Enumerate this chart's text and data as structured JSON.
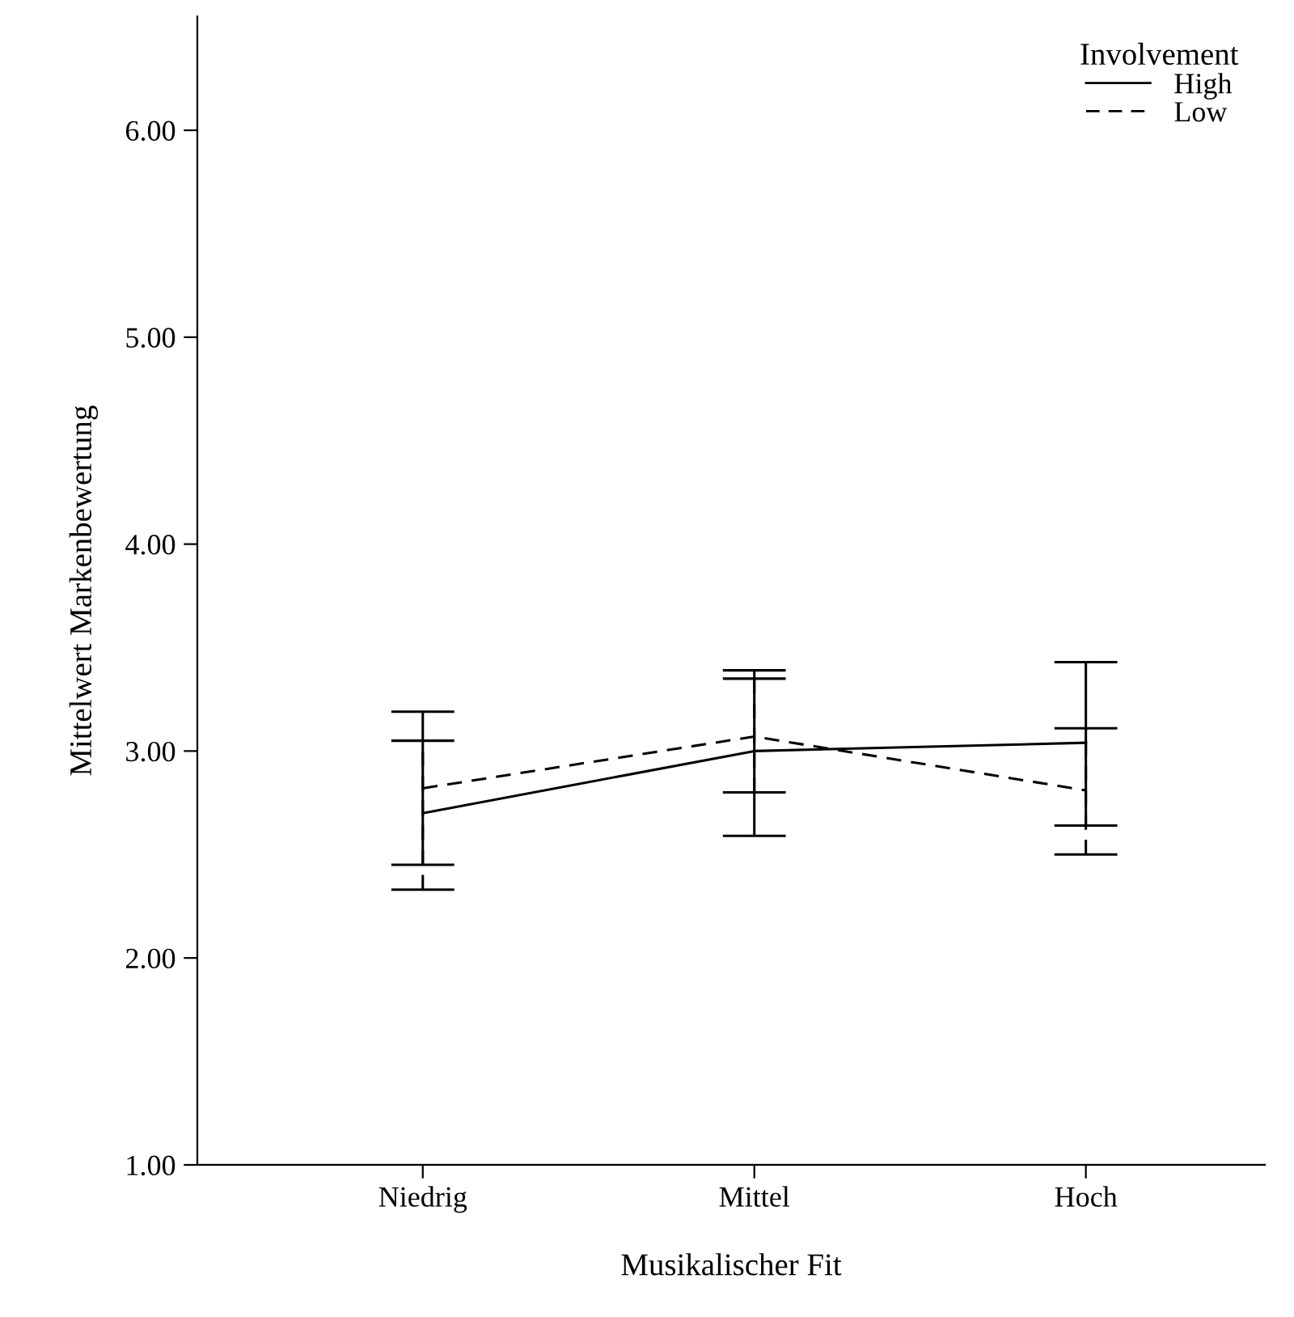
{
  "chart_data": {
    "type": "line",
    "xlabel": "Musikalischer Fit",
    "ylabel": "Mittelwert Markenbewertung",
    "legend_title": "Involvement",
    "legend": "top right",
    "categories": [
      "Niedrig",
      "Mittel",
      "Hoch"
    ],
    "series": [
      {
        "name": "High",
        "color": "#000000",
        "line_style": "solid",
        "values": [
          2.7,
          3.0,
          3.04
        ],
        "errors": [
          [
            2.45,
            3.19
          ],
          [
            2.59,
            3.39
          ],
          [
            2.64,
            3.43
          ]
        ]
      },
      {
        "name": "Low",
        "color": "#000000",
        "line_style": "dashed",
        "values": [
          2.82,
          3.07,
          2.81
        ],
        "errors": [
          [
            2.33,
            3.05
          ],
          [
            2.8,
            3.35
          ],
          [
            2.5,
            3.11
          ]
        ]
      }
    ],
    "ylim": [
      1,
      6.55
    ],
    "yticks": [
      {
        "value": 1,
        "label": "1.00"
      },
      {
        "value": 2,
        "label": "2.00"
      },
      {
        "value": 3,
        "label": "3.00"
      },
      {
        "value": 4,
        "label": "4.00"
      },
      {
        "value": 5,
        "label": "5.00"
      },
      {
        "value": 6,
        "label": "6.00"
      }
    ],
    "grid": false,
    "marker": "none"
  }
}
